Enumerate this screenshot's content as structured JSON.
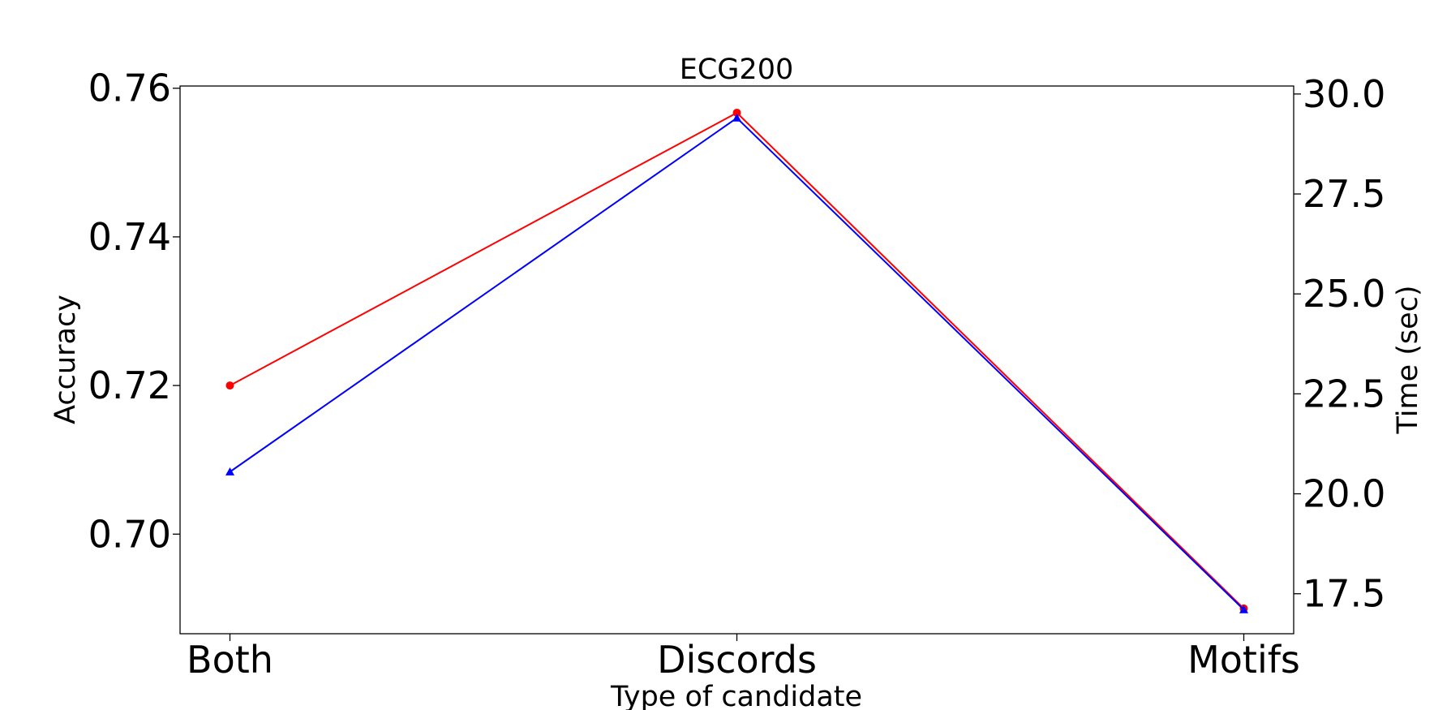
{
  "chart_data": {
    "type": "line",
    "title": "ECG200",
    "xlabel": "Type of candidate",
    "ylabel": "Accuracy",
    "y2label": "Time (sec)",
    "categories": [
      "Both",
      "Discords",
      "Motifs"
    ],
    "ylim": [
      0.6866,
      0.7603
    ],
    "y2lim": [
      16.5,
      30.2
    ],
    "yticks": [
      "0.70",
      "0.72",
      "0.74",
      "0.76"
    ],
    "y2ticks": [
      "17.5",
      "20.0",
      "22.5",
      "25.0",
      "27.5",
      "30.0"
    ],
    "grid": false,
    "series": [
      {
        "axis": "left",
        "color": "#ff0000",
        "marker": "circle",
        "values": [
          0.72,
          0.7567,
          0.69
        ]
      },
      {
        "axis": "right",
        "color": "#0000ff",
        "marker": "triangle",
        "values": [
          20.55,
          29.4,
          17.1
        ]
      }
    ]
  }
}
